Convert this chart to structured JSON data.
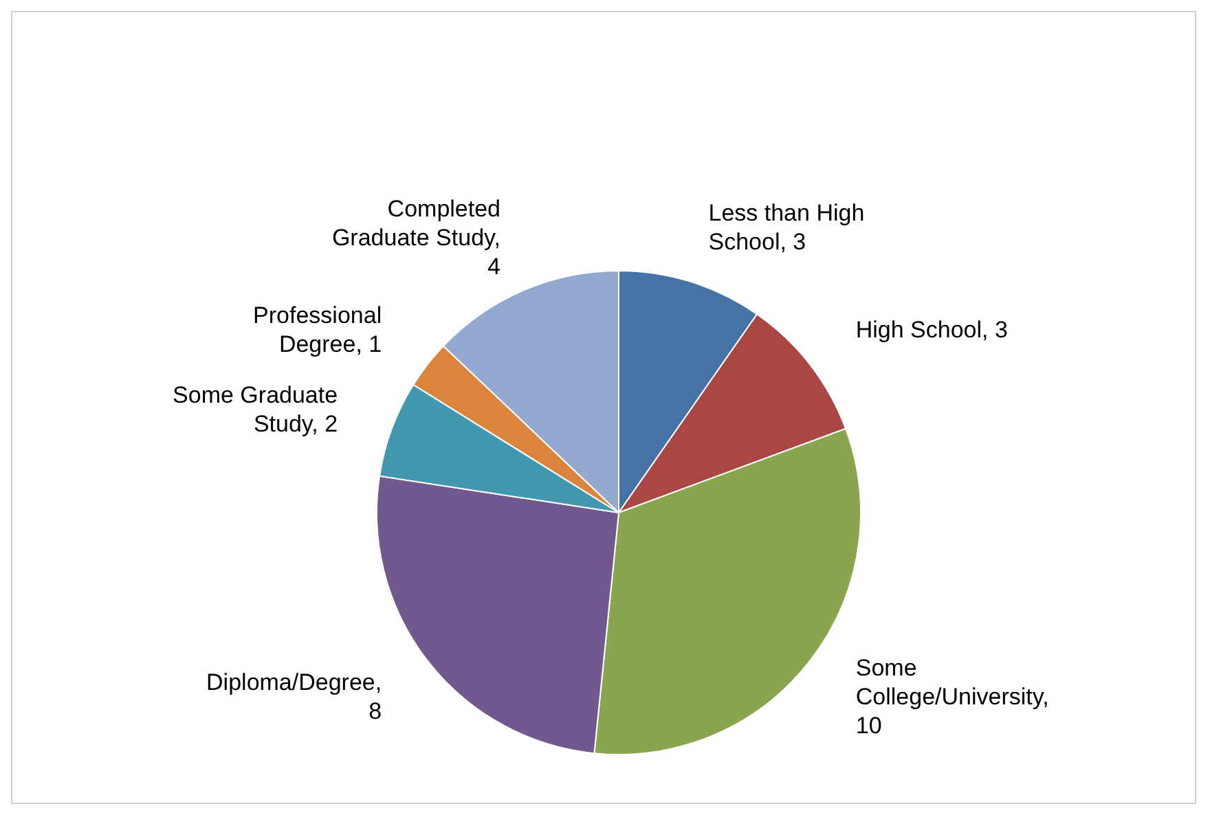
{
  "chart_data": {
    "type": "pie",
    "categories": [
      "Less than High School",
      "High School",
      "Some College/University",
      "Diploma/Degree",
      "Some Graduate Study",
      "Professional Degree",
      "Completed Graduate Study"
    ],
    "values": [
      3,
      3,
      10,
      8,
      2,
      1,
      4
    ],
    "value_labels": [
      ", 3",
      ", 3",
      ", 10",
      ", 8",
      ", 2",
      ", 1",
      ", 4"
    ],
    "colors": [
      "#4572a7",
      "#aa4643",
      "#89a54e",
      "#71588f",
      "#4198af",
      "#db843d",
      "#93a9cf"
    ],
    "legend": false
  }
}
